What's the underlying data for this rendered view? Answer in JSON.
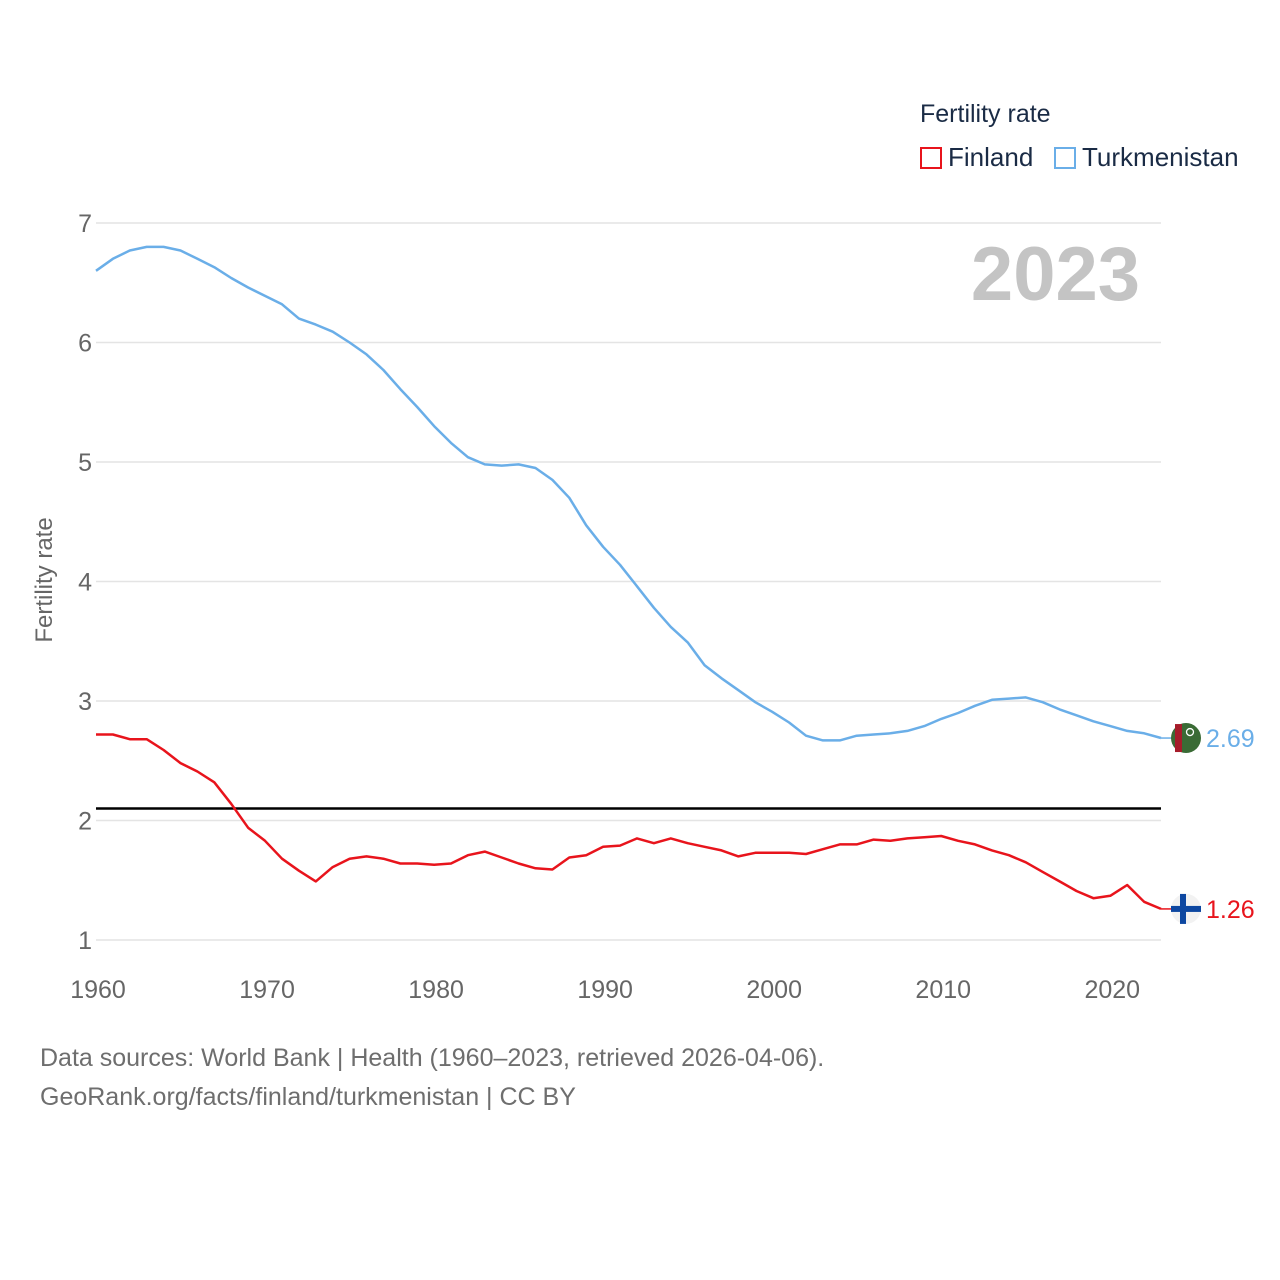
{
  "legend": {
    "title": "Fertility rate",
    "items": [
      {
        "name": "Finland",
        "color": "#e8141c"
      },
      {
        "name": "Turkmenistan",
        "color": "#6aaee8"
      }
    ]
  },
  "footer": {
    "line1": "Data sources: World Bank | Health (1960–2023, retrieved 2026-04-06).",
    "line2": "GeoRank.org/facts/finland/turkmenistan | CC BY"
  },
  "chart_data": {
    "type": "line",
    "year_label": "2023",
    "ylabel": "Fertility rate",
    "xlim": [
      1960,
      2023
    ],
    "ylim": [
      1,
      7
    ],
    "xticks": [
      1960,
      1970,
      1980,
      1990,
      2000,
      2010,
      2020
    ],
    "yticks": [
      1,
      2,
      3,
      4,
      5,
      6,
      7
    ],
    "reference_line": {
      "y": 2.1,
      "color": "#000000"
    },
    "x": [
      1960,
      1961,
      1962,
      1963,
      1964,
      1965,
      1966,
      1967,
      1968,
      1969,
      1970,
      1971,
      1972,
      1973,
      1974,
      1975,
      1976,
      1977,
      1978,
      1979,
      1980,
      1981,
      1982,
      1983,
      1984,
      1985,
      1986,
      1987,
      1988,
      1989,
      1990,
      1991,
      1992,
      1993,
      1994,
      1995,
      1996,
      1997,
      1998,
      1999,
      2000,
      2001,
      2002,
      2003,
      2004,
      2005,
      2006,
      2007,
      2008,
      2009,
      2010,
      2011,
      2012,
      2013,
      2014,
      2015,
      2016,
      2017,
      2018,
      2019,
      2020,
      2021,
      2022,
      2023
    ],
    "series": [
      {
        "name": "Finland",
        "color": "#e8141c",
        "end_label": "1.26",
        "flag": "finland-flag",
        "values": [
          2.72,
          2.72,
          2.68,
          2.68,
          2.59,
          2.48,
          2.41,
          2.32,
          2.14,
          1.94,
          1.83,
          1.68,
          1.58,
          1.49,
          1.61,
          1.68,
          1.7,
          1.68,
          1.64,
          1.64,
          1.63,
          1.64,
          1.71,
          1.74,
          1.69,
          1.64,
          1.6,
          1.59,
          1.69,
          1.71,
          1.78,
          1.79,
          1.85,
          1.81,
          1.85,
          1.81,
          1.78,
          1.75,
          1.7,
          1.73,
          1.73,
          1.73,
          1.72,
          1.76,
          1.8,
          1.8,
          1.84,
          1.83,
          1.85,
          1.86,
          1.87,
          1.83,
          1.8,
          1.75,
          1.71,
          1.65,
          1.57,
          1.49,
          1.41,
          1.35,
          1.37,
          1.46,
          1.32,
          1.26
        ]
      },
      {
        "name": "Turkmenistan",
        "color": "#6aaee8",
        "end_label": "2.69",
        "flag": "turkmenistan-flag",
        "values": [
          6.6,
          6.7,
          6.77,
          6.8,
          6.8,
          6.77,
          6.7,
          6.63,
          6.54,
          6.46,
          6.39,
          6.32,
          6.2,
          6.15,
          6.09,
          6.0,
          5.9,
          5.77,
          5.61,
          5.46,
          5.3,
          5.16,
          5.04,
          4.98,
          4.97,
          4.98,
          4.95,
          4.85,
          4.7,
          4.47,
          4.29,
          4.14,
          3.96,
          3.78,
          3.62,
          3.49,
          3.3,
          3.19,
          3.09,
          2.99,
          2.91,
          2.82,
          2.71,
          2.67,
          2.67,
          2.71,
          2.72,
          2.73,
          2.75,
          2.79,
          2.85,
          2.9,
          2.96,
          3.01,
          3.02,
          3.03,
          2.99,
          2.93,
          2.88,
          2.83,
          2.79,
          2.75,
          2.73,
          2.69
        ]
      }
    ]
  }
}
